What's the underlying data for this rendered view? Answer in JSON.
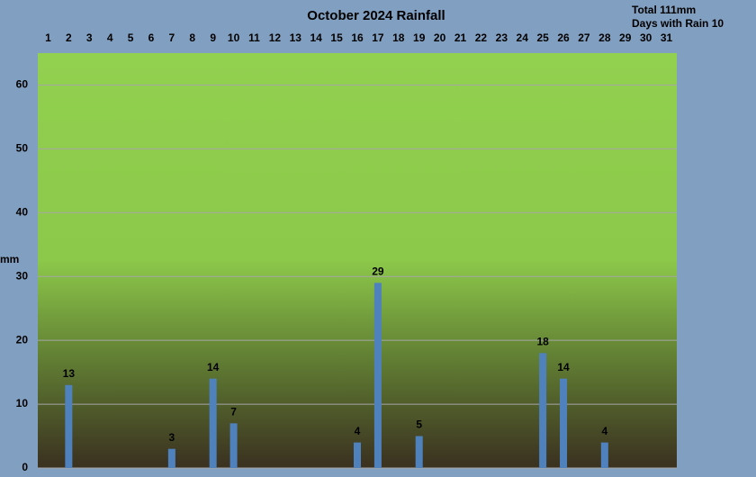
{
  "chart_data": {
    "type": "bar",
    "title": "October 2024 Rainfall",
    "notes": [
      "Total 111mm",
      "Days with Rain 10"
    ],
    "y_label": "mm",
    "categories": [
      "1",
      "2",
      "3",
      "4",
      "5",
      "6",
      "7",
      "8",
      "9",
      "10",
      "11",
      "12",
      "13",
      "14",
      "15",
      "16",
      "17",
      "18",
      "19",
      "20",
      "21",
      "22",
      "23",
      "24",
      "25",
      "26",
      "27",
      "28",
      "29",
      "30",
      "31"
    ],
    "values": [
      0,
      13,
      0,
      0,
      0,
      0,
      3,
      0,
      14,
      7,
      0,
      0,
      0,
      0,
      0,
      4,
      29,
      0,
      5,
      0,
      0,
      0,
      0,
      0,
      18,
      14,
      0,
      4,
      0,
      0,
      0
    ],
    "color": "#4f81bd",
    "ylim": [
      0,
      65
    ],
    "yticks": [
      0,
      10,
      20,
      30,
      40,
      50,
      60
    ],
    "grid": true
  }
}
